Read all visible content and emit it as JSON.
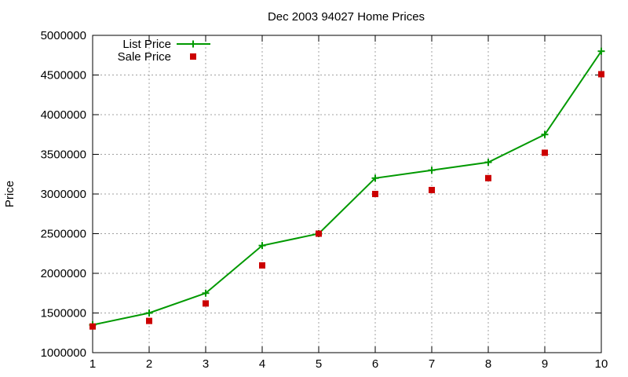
{
  "chart_data": {
    "type": "line",
    "title": "Dec 2003 94027 Home Prices",
    "xlabel": "",
    "ylabel": "Price",
    "xlim": [
      1,
      10
    ],
    "ylim": [
      1000000,
      5000000
    ],
    "x_ticks": [
      1,
      2,
      3,
      4,
      5,
      6,
      7,
      8,
      9,
      10
    ],
    "y_ticks": [
      1000000,
      1500000,
      2000000,
      2500000,
      3000000,
      3500000,
      4000000,
      4500000,
      5000000
    ],
    "grid": true,
    "legend_position": "top-left",
    "x": [
      1,
      2,
      3,
      4,
      5,
      6,
      7,
      8,
      9,
      10
    ],
    "series": [
      {
        "name": "List Price",
        "style": "line-plus",
        "color": "#009900",
        "values": [
          1350000,
          1500000,
          1750000,
          2350000,
          2500000,
          3200000,
          3300000,
          3400000,
          3750000,
          4800000
        ]
      },
      {
        "name": "Sale Price",
        "style": "square-points",
        "color": "#cc0000",
        "values": [
          1330000,
          1400000,
          1620000,
          2100000,
          2500000,
          3000000,
          3050000,
          3200000,
          3520000,
          4510000
        ]
      }
    ]
  }
}
